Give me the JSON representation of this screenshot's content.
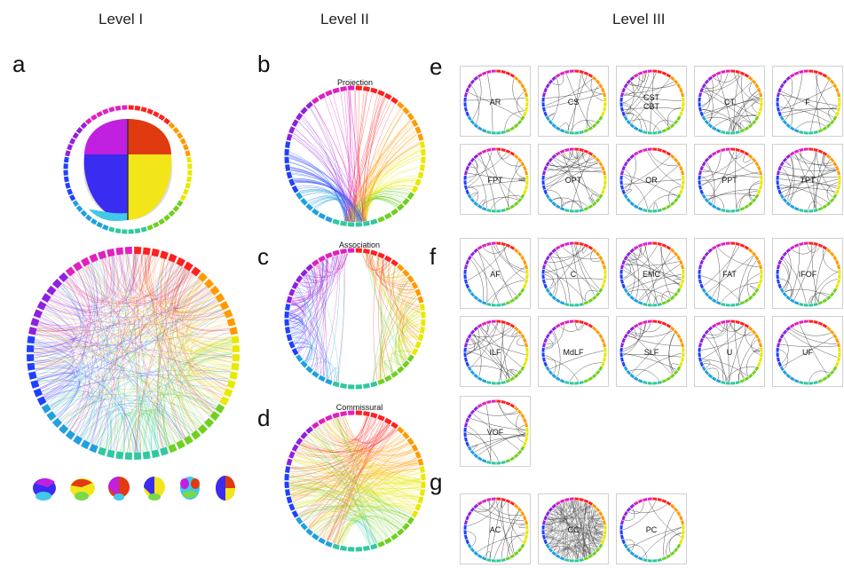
{
  "levels": {
    "level1": "Level I",
    "level2": "Level II",
    "level3": "Level III"
  },
  "panels": {
    "a": "a",
    "b": "b",
    "c": "c",
    "d": "d",
    "e": "e",
    "f": "f",
    "g": "g"
  },
  "level2_titles": {
    "projection": "Projection",
    "association": "Association",
    "commissural": "Commissural"
  },
  "tracts_e": [
    {
      "lines": [
        "AR"
      ]
    },
    {
      "lines": [
        "CS"
      ]
    },
    {
      "lines": [
        "CST",
        "CBT"
      ]
    },
    {
      "lines": [
        "CT"
      ]
    },
    {
      "lines": [
        "F"
      ]
    },
    {
      "lines": [
        "FPT"
      ]
    },
    {
      "lines": [
        "OPT"
      ]
    },
    {
      "lines": [
        "OR"
      ]
    },
    {
      "lines": [
        "PPT"
      ]
    },
    {
      "lines": [
        "TPT"
      ]
    }
  ],
  "tracts_f": [
    {
      "lines": [
        "AF"
      ]
    },
    {
      "lines": [
        "C"
      ]
    },
    {
      "lines": [
        "EMC"
      ]
    },
    {
      "lines": [
        "FAT"
      ]
    },
    {
      "lines": [
        "IFOF"
      ]
    },
    {
      "lines": [
        "ILF"
      ]
    },
    {
      "lines": [
        "MdLF"
      ]
    },
    {
      "lines": [
        "SLF"
      ]
    },
    {
      "lines": [
        "U"
      ]
    },
    {
      "lines": [
        "UF"
      ]
    },
    {
      "lines": [
        "VOF"
      ]
    }
  ],
  "tracts_g": [
    {
      "lines": [
        "AC"
      ]
    },
    {
      "lines": [
        "CC"
      ]
    },
    {
      "lines": [
        "PC"
      ]
    }
  ],
  "colors": {
    "ring_hues": [
      "#ff2020",
      "#ff9a00",
      "#e8e800",
      "#70d020",
      "#30c8a0",
      "#20a0e0",
      "#2040ff",
      "#9020e0",
      "#e020c0"
    ],
    "brain_left_top": "#c020e0",
    "brain_left_bottom": "#3a2cf0",
    "brain_right_top": "#e03a10",
    "brain_right_bottom": "#f2e61a"
  }
}
